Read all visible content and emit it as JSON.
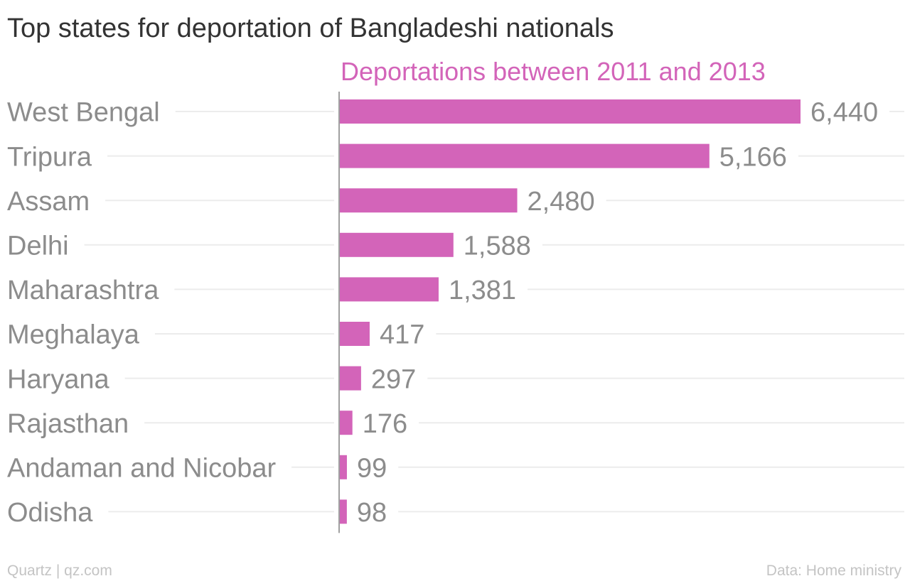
{
  "colors": {
    "bar": "#d364b9",
    "series_label": "#d364b9",
    "title": "#333333",
    "category_label": "#8c8c8c",
    "value_label": "#8c8c8c",
    "gridline": "#ececec",
    "axis": "#a0a0a0",
    "footer": "#c4c4c4"
  },
  "chart_data": {
    "type": "bar",
    "orientation": "horizontal",
    "title": "Top states for deportation of Bangladeshi nationals",
    "series": [
      {
        "name": "Deportations between 2011 and 2013",
        "values": [
          6440,
          5166,
          2480,
          1588,
          1381,
          417,
          297,
          176,
          99,
          98
        ]
      }
    ],
    "categories": [
      "West Bengal",
      "Tripura",
      "Assam",
      "Delhi",
      "Maharashtra",
      "Meghalaya",
      "Haryana",
      "Rajasthan",
      "Andaman and Nicobar",
      "Odisha"
    ],
    "value_labels": [
      "6,440",
      "5,166",
      "2,480",
      "1,588",
      "1,381",
      "417",
      "297",
      "176",
      "99",
      "98"
    ],
    "xlim": [
      0,
      6440
    ],
    "grid": true,
    "legend": "top"
  },
  "footer": {
    "source_left": "Quartz | qz.com",
    "source_right": "Data: Home ministry"
  }
}
